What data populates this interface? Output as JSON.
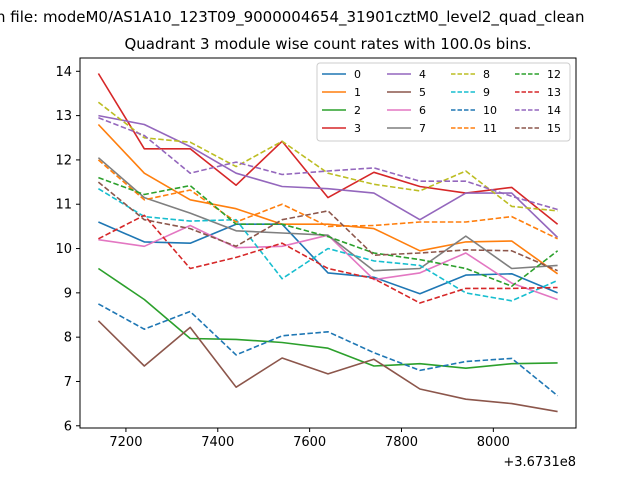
{
  "chart_data": {
    "type": "line",
    "suptitle": "n file: modeM0/AS1A10_123T09_9000004654_31901cztM0_level2_quad_clean",
    "title": "Quadrant 3 module wise count rates with 100.0s bins.",
    "xlabel": "",
    "ylabel": "",
    "x_offset_label": "+3.6731e8",
    "xlim": [
      7100,
      8180
    ],
    "ylim": [
      5.95,
      14.3
    ],
    "x_ticks": [
      7200,
      7400,
      7600,
      7800,
      8000
    ],
    "y_ticks": [
      6,
      7,
      8,
      9,
      10,
      11,
      12,
      13,
      14
    ],
    "grid": false,
    "legend_position": "top-right",
    "x": [
      7140,
      7240,
      7340,
      7440,
      7540,
      7640,
      7740,
      7840,
      7940,
      8040,
      8140
    ],
    "series": [
      {
        "name": "0",
        "color": "#1f77b4",
        "dash": "solid",
        "values": [
          10.6,
          10.15,
          10.12,
          10.55,
          10.55,
          9.45,
          9.35,
          8.98,
          9.4,
          9.43,
          9.0
        ]
      },
      {
        "name": "1",
        "color": "#ff7f0e",
        "dash": "solid",
        "values": [
          12.8,
          11.7,
          11.1,
          10.9,
          10.55,
          10.55,
          10.45,
          9.95,
          10.15,
          10.17,
          9.43
        ]
      },
      {
        "name": "2",
        "color": "#2ca02c",
        "dash": "solid",
        "values": [
          9.55,
          8.85,
          7.97,
          7.95,
          7.88,
          7.75,
          7.35,
          7.4,
          7.3,
          7.4,
          7.42
        ]
      },
      {
        "name": "3",
        "color": "#d62728",
        "dash": "solid",
        "values": [
          13.95,
          12.25,
          12.25,
          11.43,
          12.42,
          11.15,
          11.72,
          11.4,
          11.25,
          11.38,
          10.55
        ]
      },
      {
        "name": "4",
        "color": "#9467bd",
        "dash": "solid",
        "values": [
          13.0,
          12.8,
          12.3,
          11.7,
          11.4,
          11.35,
          11.25,
          10.65,
          11.25,
          11.25,
          10.25
        ]
      },
      {
        "name": "5",
        "color": "#8c564b",
        "dash": "solid",
        "values": [
          8.37,
          7.35,
          8.22,
          6.87,
          7.53,
          7.17,
          7.5,
          6.83,
          6.6,
          6.5,
          6.32
        ]
      },
      {
        "name": "6",
        "color": "#e377c2",
        "dash": "solid",
        "values": [
          10.2,
          10.05,
          10.52,
          10.02,
          10.05,
          10.3,
          9.3,
          9.45,
          9.9,
          9.22,
          8.85
        ]
      },
      {
        "name": "7",
        "color": "#7f7f7f",
        "dash": "solid",
        "values": [
          12.05,
          11.15,
          10.8,
          10.4,
          10.35,
          10.3,
          9.5,
          9.55,
          10.28,
          9.55,
          9.62
        ]
      },
      {
        "name": "8",
        "color": "#bcbd22",
        "dash": "dashed",
        "values": [
          13.3,
          12.5,
          12.4,
          11.85,
          12.42,
          11.7,
          11.45,
          11.3,
          11.75,
          10.95,
          10.85
        ]
      },
      {
        "name": "9",
        "color": "#17becf",
        "dash": "dashed",
        "values": [
          11.35,
          10.72,
          10.62,
          10.65,
          9.32,
          10.0,
          9.72,
          9.62,
          9.0,
          8.82,
          9.28
        ]
      },
      {
        "name": "10",
        "color": "#1f77b4",
        "dash": "dashed",
        "values": [
          8.75,
          8.18,
          8.58,
          7.6,
          8.03,
          8.12,
          7.65,
          7.25,
          7.45,
          7.52,
          6.68
        ]
      },
      {
        "name": "11",
        "color": "#ff7f0e",
        "dash": "dashed",
        "values": [
          12.0,
          11.1,
          11.32,
          10.6,
          11.0,
          10.5,
          10.52,
          10.6,
          10.6,
          10.72,
          10.22
        ]
      },
      {
        "name": "12",
        "color": "#2ca02c",
        "dash": "dashed",
        "values": [
          11.6,
          11.22,
          11.42,
          10.55,
          10.55,
          10.27,
          9.9,
          9.75,
          9.55,
          9.15,
          9.95
        ]
      },
      {
        "name": "13",
        "color": "#d62728",
        "dash": "dashed",
        "values": [
          10.22,
          10.75,
          9.55,
          9.8,
          10.12,
          9.55,
          9.32,
          8.77,
          9.1,
          9.1,
          9.12
        ]
      },
      {
        "name": "14",
        "color": "#9467bd",
        "dash": "dashed",
        "values": [
          12.95,
          12.55,
          11.7,
          11.95,
          11.67,
          11.75,
          11.82,
          11.52,
          11.52,
          11.18,
          10.88
        ]
      },
      {
        "name": "15",
        "color": "#8c564b",
        "dash": "dashed",
        "values": [
          11.5,
          10.65,
          10.45,
          10.05,
          10.65,
          10.85,
          9.85,
          9.9,
          9.97,
          9.95,
          9.5
        ]
      }
    ]
  }
}
